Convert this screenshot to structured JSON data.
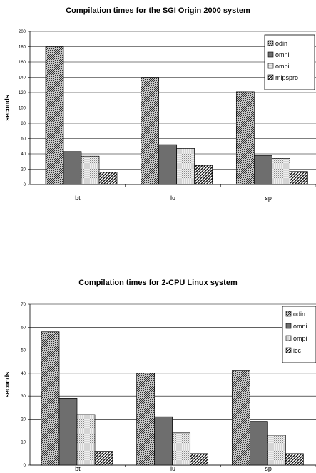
{
  "chart_data": [
    {
      "type": "bar",
      "title": "Compilation times for the SGI Origin 2000 system",
      "xlabel": "",
      "ylabel": "seconds",
      "categories": [
        "bt",
        "lu",
        "sp"
      ],
      "ylim": [
        0,
        200
      ],
      "yticks": [
        0,
        20,
        40,
        60,
        80,
        100,
        120,
        140,
        160,
        180,
        200
      ],
      "grid": true,
      "legend_position": "top-right",
      "series": [
        {
          "name": "odin",
          "values": [
            180,
            140,
            121
          ],
          "pattern": "dense-diagonal"
        },
        {
          "name": "omni",
          "values": [
            43,
            52,
            38
          ],
          "pattern": "solid-gray"
        },
        {
          "name": "ompi",
          "values": [
            37,
            47,
            34
          ],
          "pattern": "dotted-light"
        },
        {
          "name": "mipspro",
          "values": [
            16,
            25,
            17
          ],
          "pattern": "wide-diagonal"
        }
      ]
    },
    {
      "type": "bar",
      "title": "Compilation times for 2-CPU Linux system",
      "xlabel": "",
      "ylabel": "seconds",
      "categories": [
        "bt",
        "lu",
        "sp"
      ],
      "ylim": [
        0,
        70
      ],
      "yticks": [
        0,
        10,
        20,
        30,
        40,
        50,
        60,
        70
      ],
      "grid": true,
      "legend_position": "top-right",
      "series": [
        {
          "name": "odin",
          "values": [
            58,
            40,
            41
          ],
          "pattern": "dense-diagonal"
        },
        {
          "name": "omni",
          "values": [
            29,
            21,
            19
          ],
          "pattern": "solid-gray"
        },
        {
          "name": "ompi",
          "values": [
            22,
            14,
            13
          ],
          "pattern": "dotted-light"
        },
        {
          "name": "icc",
          "values": [
            6,
            5,
            5
          ],
          "pattern": "wide-diagonal"
        }
      ]
    }
  ]
}
